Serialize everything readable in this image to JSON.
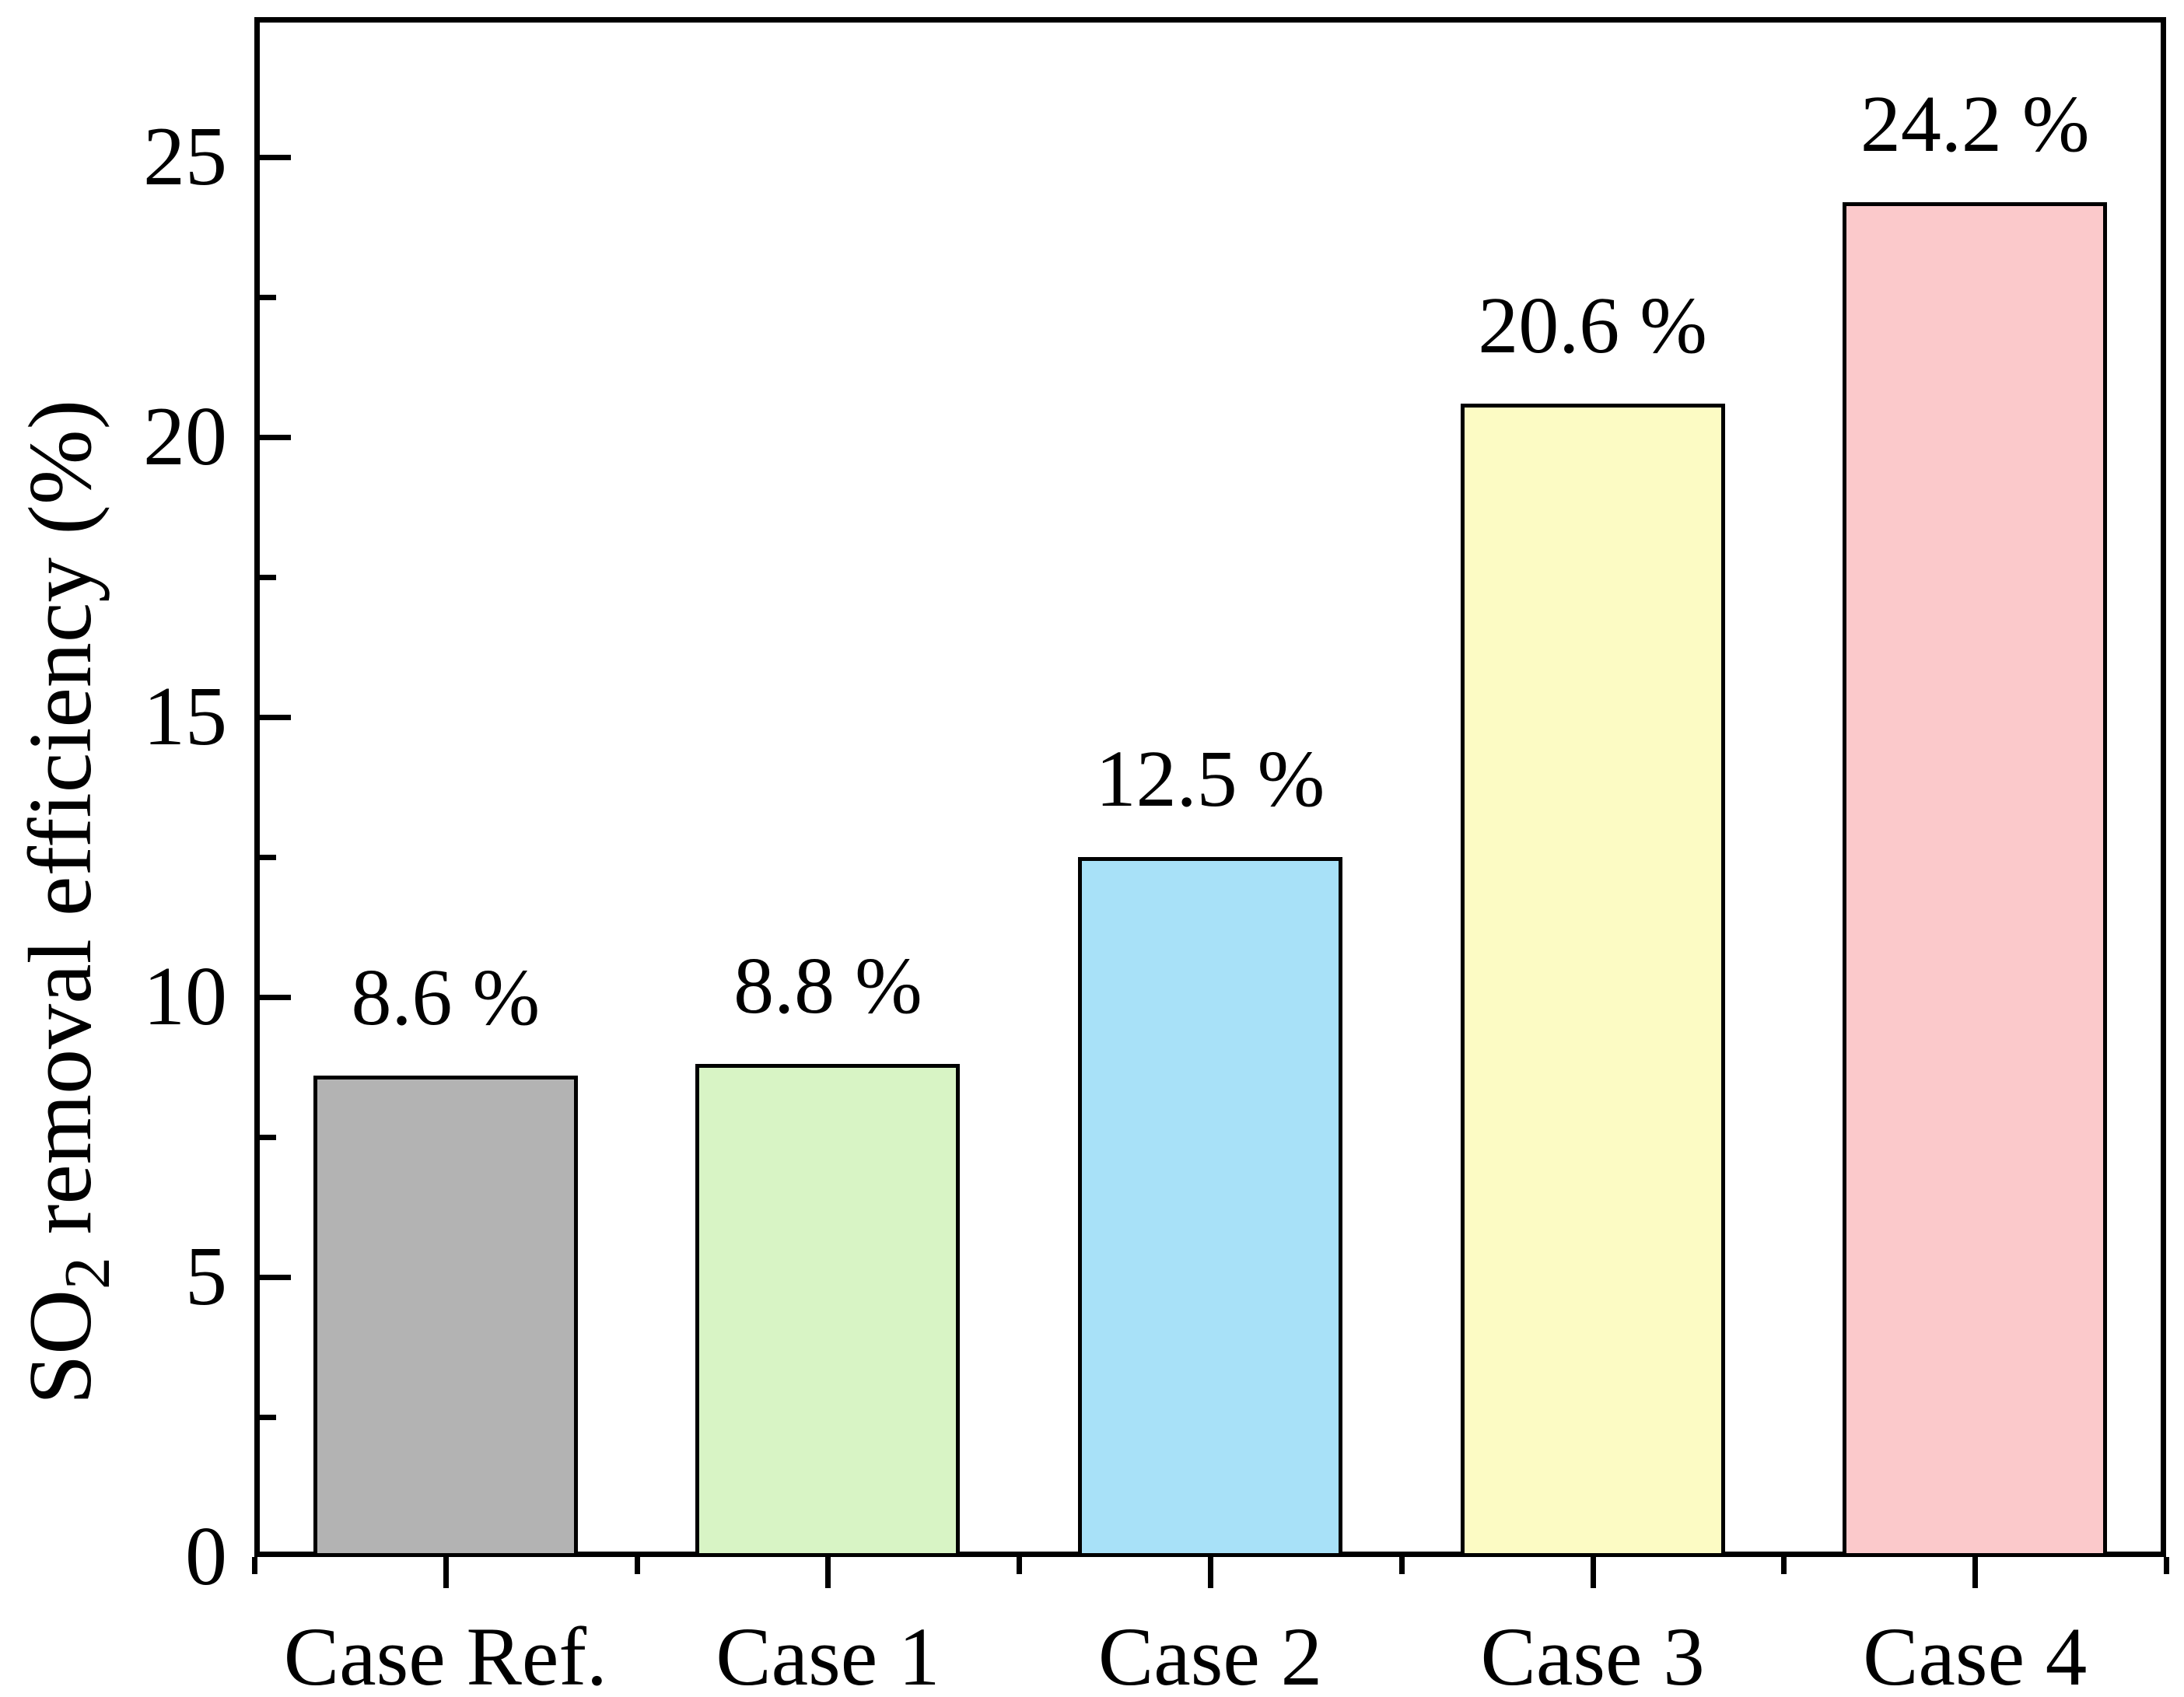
{
  "figure": {
    "background": "#ffffff"
  },
  "chart_data": {
    "type": "bar",
    "title": "",
    "categories": [
      "Case Ref.",
      "Case 1",
      "Case 2",
      "Case 3",
      "Case 4"
    ],
    "values": [
      8.6,
      8.8,
      12.5,
      20.6,
      24.2
    ],
    "value_labels": [
      "8.6 %",
      "8.8 %",
      "12.5 %",
      "20.6 %",
      "24.2 %"
    ],
    "bar_colors": [
      "#b3b3b3",
      "#d8f4c5",
      "#a8e1f8",
      "#fcfbc4",
      "#fbc9cb"
    ],
    "bar_border_color": "#000000",
    "axis_color": "#000000",
    "xlabel": "",
    "ylabel": "SO2 removal efficiency (%)",
    "ylabel_parts": {
      "prefix": "SO",
      "sub": "2",
      "suffix": " removal efficiency (%)"
    },
    "ylim": [
      0,
      27.5
    ],
    "ytick_values": [
      0,
      5,
      10,
      15,
      20,
      25
    ],
    "ytick_labels": [
      "0",
      "5",
      "10",
      "15",
      "20",
      "25"
    ],
    "ytick_minor_step": 2.5,
    "grid": "off",
    "legend": "none"
  }
}
